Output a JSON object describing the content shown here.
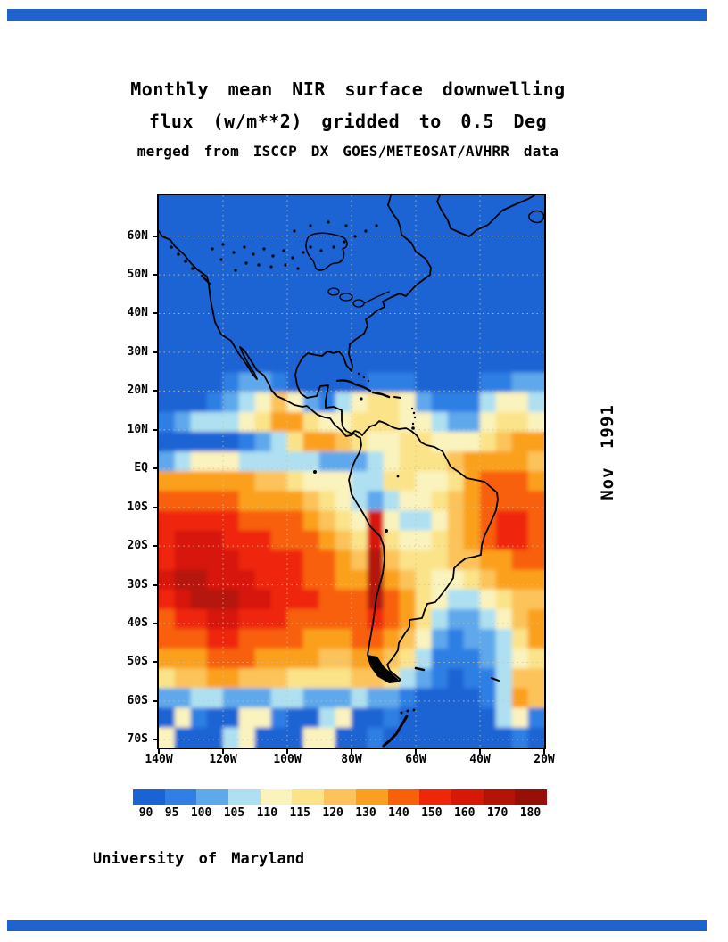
{
  "page": {
    "accent_bar_color": "#2163cd"
  },
  "title": {
    "line1": "Monthly mean NIR surface downwelling",
    "line2": "flux (w/m**2) gridded to 0.5 Deg",
    "line3": "merged from ISCCP DX GOES/METEOSAT/AVHRR data"
  },
  "side_label": "Nov 1991",
  "credit": "University of Maryland",
  "chart_data": {
    "type": "heatmap",
    "title": "Monthly mean NIR surface downwelling flux (w/m**2) gridded to 0.5 Deg",
    "subtitle": "merged from ISCCP DX GOES/METEOSAT/AVHRR data",
    "month": "Nov 1991",
    "units": "w/m**2",
    "x_ticks": [
      "140W",
      "120W",
      "100W",
      "80W",
      "60W",
      "40W",
      "20W"
    ],
    "y_ticks": [
      "60N",
      "50N",
      "40N",
      "30N",
      "20N",
      "10N",
      "EQ",
      "10S",
      "20S",
      "30S",
      "40S",
      "50S",
      "60S",
      "70S"
    ],
    "axis": {
      "lon_range_deg_west": [
        140,
        20
      ],
      "lat_range": [
        70.5,
        -72
      ],
      "grid_dotted": true
    },
    "colorbar": {
      "labels": [
        90,
        95,
        100,
        105,
        110,
        115,
        120,
        130,
        140,
        150,
        160,
        170,
        180
      ],
      "colors": [
        "#1a63d4",
        "#2f7fe4",
        "#5fa8ec",
        "#aee0f2",
        "#faf3be",
        "#fbe38a",
        "#fcc35a",
        "#fba01e",
        "#f8600a",
        "#ef2708",
        "#d71708",
        "#b51208",
        "#971008"
      ]
    },
    "grid": {
      "note": "approximate flux field, 5-degree cells, row-major from 70N/140W to 70S/20W; each char is an index (hex) into colorbar.colors",
      "cols": 24,
      "rows": [
        "000000000000000000000000",
        "000000000000000000000000",
        "000000000000000000000000",
        "000000000000000000000000",
        "000000000000000000000000",
        "000000000000000000000000",
        "000000000000000000000000",
        "000000000000000000000000",
        "000000000000000000000000",
        "000012210000011100001122",
        "000123464213455421113443",
        "123334577544555443224554",
        "000001235776544554445677",
        "234443333322234555677776",
        "777777665444335544578887",
        "888887777654323445678888",
        "9999988887654a4334678998",
        "9aaa999888765a5445678998",
        "9aaaa99998876b6555667788",
        "abbaaa9998877b7654456777",
        "9abbbaa999888b8754334566",
        "899aa9998888898753223467",
        "888998888777887642122357",
        "777888777766776531112345",
        "566776665555665321011366",
        "223322233222322100001376",
        "041004410034001000000341",
        "400034000440010000000010"
      ]
    },
    "map_style": {
      "gridline_color": "#cfc09a",
      "coastline_color": "#000000",
      "ocean_base_color": "#1a63d4"
    }
  }
}
